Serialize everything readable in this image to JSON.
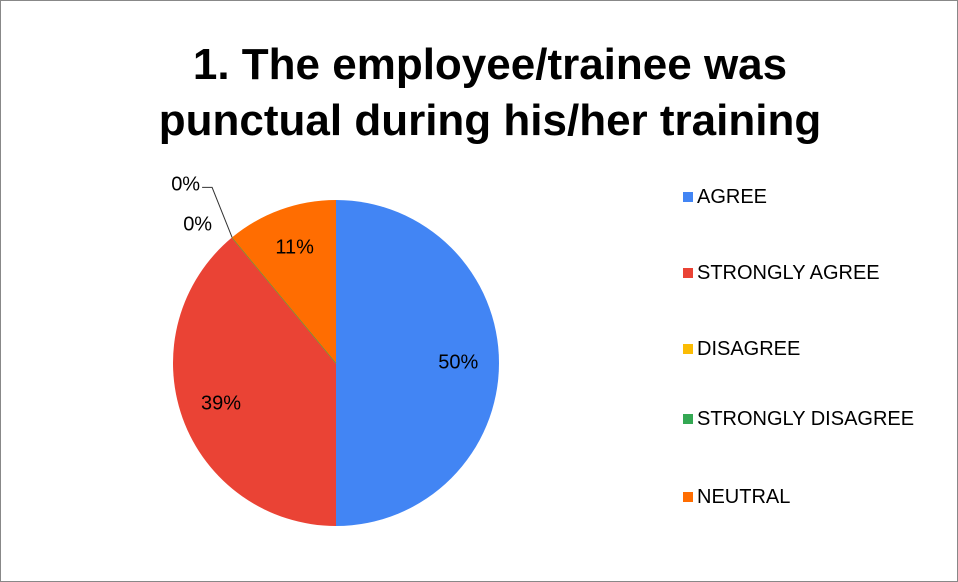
{
  "chart_data": {
    "type": "pie",
    "title": "1. The employee/trainee was punctual during his/her training",
    "categories": [
      "AGREE",
      "STRONGLY AGREE",
      "DISAGREE",
      "STRONGLY DISAGREE",
      "NEUTRAL"
    ],
    "values": [
      50,
      39,
      0,
      0,
      11
    ],
    "value_labels": [
      "50%",
      "39%",
      "0%",
      "0%",
      "11%"
    ],
    "colors": [
      "#4285f4",
      "#ea4335",
      "#fbbc04",
      "#34a853",
      "#ff6d01"
    ],
    "legend": "right"
  }
}
